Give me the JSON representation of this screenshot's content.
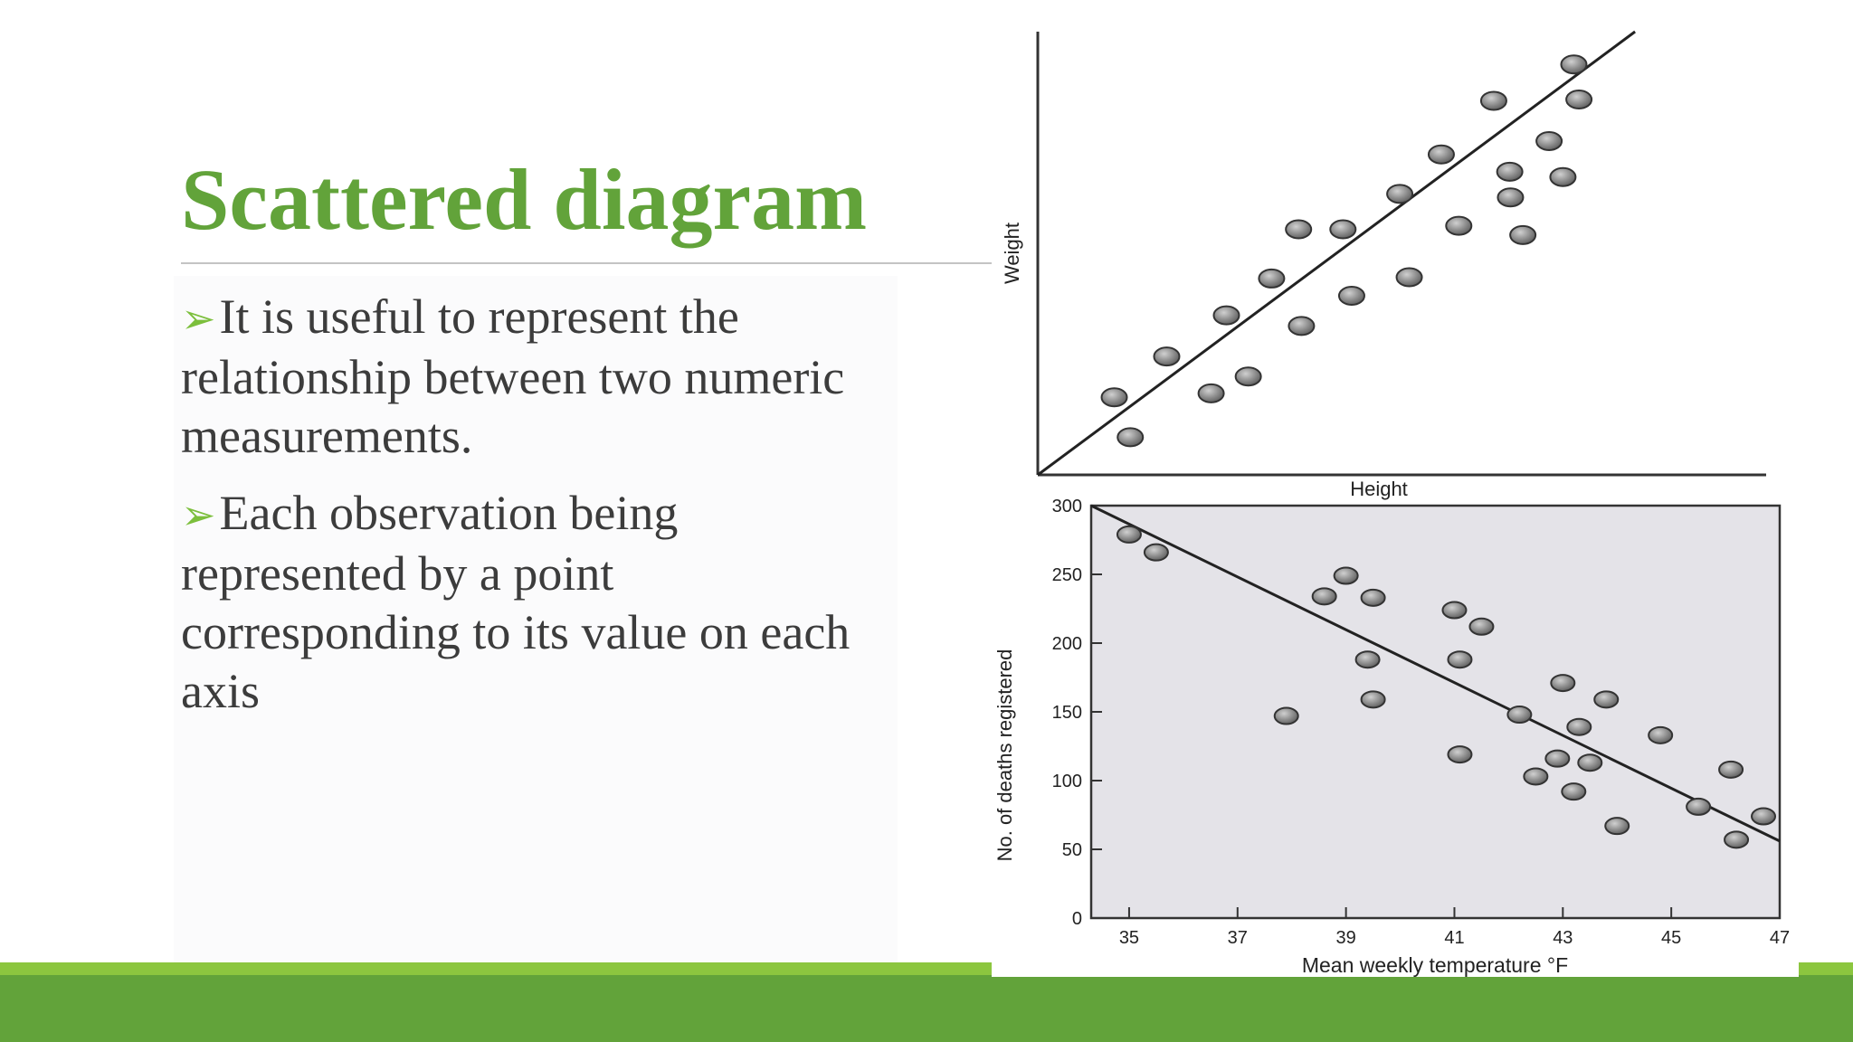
{
  "slide": {
    "title": "Scattered diagram",
    "bullets": [
      {
        "marker": "➢",
        "text": "It is useful to represent the relationship  between two numeric measurements."
      },
      {
        "marker": "➢",
        "text": "Each observation being represented by a point corresponding to its value on each axis"
      }
    ]
  },
  "colors": {
    "title": "#62a33a",
    "band_light": "#8cc63f",
    "band_dark": "#62a33a",
    "point_fill": "#8e8e8e",
    "plot_bg": "#e4e3e8"
  },
  "chart_data": [
    {
      "type": "scatter",
      "title": "",
      "xlabel": "Height",
      "ylabel": "Weight",
      "ticks_shown": false,
      "grid": false,
      "xlim": [
        0,
        100
      ],
      "ylim": [
        0,
        100
      ],
      "points": [
        {
          "x": 10.5,
          "y": 17.5
        },
        {
          "x": 12.7,
          "y": 8.5
        },
        {
          "x": 17.7,
          "y": 26.7
        },
        {
          "x": 23.8,
          "y": 18.4
        },
        {
          "x": 25.9,
          "y": 36.0
        },
        {
          "x": 28.9,
          "y": 22.2
        },
        {
          "x": 32.1,
          "y": 44.3
        },
        {
          "x": 36.2,
          "y": 33.6
        },
        {
          "x": 35.8,
          "y": 55.4
        },
        {
          "x": 41.9,
          "y": 55.4
        },
        {
          "x": 43.1,
          "y": 40.4
        },
        {
          "x": 49.7,
          "y": 63.4
        },
        {
          "x": 51.0,
          "y": 44.6
        },
        {
          "x": 55.4,
          "y": 72.3
        },
        {
          "x": 57.8,
          "y": 56.2
        },
        {
          "x": 62.6,
          "y": 84.4
        },
        {
          "x": 64.8,
          "y": 68.4
        },
        {
          "x": 64.9,
          "y": 62.6
        },
        {
          "x": 66.6,
          "y": 54.1
        },
        {
          "x": 70.2,
          "y": 75.3
        },
        {
          "x": 72.1,
          "y": 67.2
        },
        {
          "x": 73.6,
          "y": 92.6
        },
        {
          "x": 74.3,
          "y": 84.7
        }
      ],
      "trend_line": {
        "from": [
          0,
          0
        ],
        "to": [
          82,
          100
        ]
      }
    },
    {
      "type": "scatter",
      "title": "",
      "xlabel": "Mean weekly temperature °F",
      "ylabel": "No. of deaths registered",
      "grid": false,
      "xlim": [
        34.3,
        47
      ],
      "ylim": [
        0,
        300
      ],
      "x_ticks": [
        "35",
        "37",
        "39",
        "41",
        "43",
        "45",
        "47"
      ],
      "y_ticks": [
        "0",
        "50",
        "100",
        "150",
        "200",
        "250",
        "300"
      ],
      "points": [
        {
          "x": 35.0,
          "y": 279
        },
        {
          "x": 35.5,
          "y": 266
        },
        {
          "x": 37.9,
          "y": 147
        },
        {
          "x": 38.6,
          "y": 234
        },
        {
          "x": 39.0,
          "y": 249
        },
        {
          "x": 39.4,
          "y": 188
        },
        {
          "x": 39.5,
          "y": 233
        },
        {
          "x": 39.5,
          "y": 159
        },
        {
          "x": 41.0,
          "y": 224
        },
        {
          "x": 41.1,
          "y": 188
        },
        {
          "x": 41.1,
          "y": 119
        },
        {
          "x": 41.5,
          "y": 212
        },
        {
          "x": 42.2,
          "y": 148
        },
        {
          "x": 42.5,
          "y": 103
        },
        {
          "x": 42.9,
          "y": 116
        },
        {
          "x": 43.0,
          "y": 171
        },
        {
          "x": 43.2,
          "y": 92
        },
        {
          "x": 43.3,
          "y": 139
        },
        {
          "x": 43.5,
          "y": 113
        },
        {
          "x": 43.8,
          "y": 159
        },
        {
          "x": 44.0,
          "y": 67
        },
        {
          "x": 44.8,
          "y": 133
        },
        {
          "x": 45.5,
          "y": 81
        },
        {
          "x": 46.1,
          "y": 108
        },
        {
          "x": 46.2,
          "y": 57
        },
        {
          "x": 46.7,
          "y": 74
        }
      ],
      "trend_line": {
        "from": [
          34.3,
          300
        ],
        "to": [
          47,
          56
        ]
      }
    }
  ]
}
